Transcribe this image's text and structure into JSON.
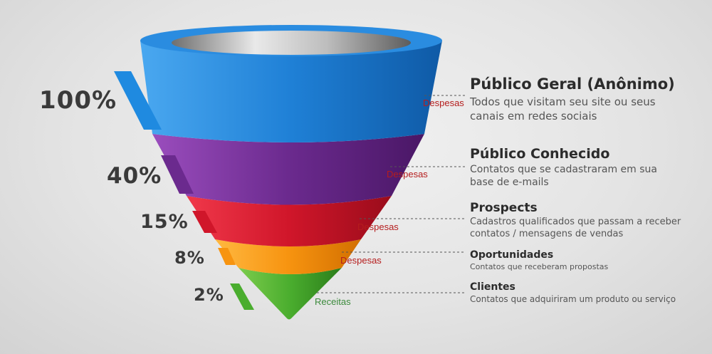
{
  "colors": {
    "blue": "#1f80d6",
    "purple": "#6b2a8e",
    "red": "#d0162a",
    "orange": "#f79410",
    "green": "#4aad2e",
    "despesas": "#b51d1d",
    "receitas": "#3b8a3b"
  },
  "stages": [
    {
      "percent": "100%",
      "cost_label": "Despesas",
      "title": "Público Geral (Anônimo)",
      "description_line1": "Todos que visitam seu site ou seus",
      "description_line2": "canais em redes sociais"
    },
    {
      "percent": "40%",
      "cost_label": "Despesas",
      "title": "Público Conhecido",
      "description_line1": "Contatos que se cadastraram em sua",
      "description_line2": "base de e-mails"
    },
    {
      "percent": "15%",
      "cost_label": "Despesas",
      "title": "Prospects",
      "description_line1": "Cadastros qualificados que passam a receber",
      "description_line2": "contatos / mensagens de vendas"
    },
    {
      "percent": "8%",
      "cost_label": "Despesas",
      "title": "Oportunidades",
      "description_line1": "Contatos que receberam propostas",
      "description_line2": ""
    },
    {
      "percent": "2%",
      "cost_label": "Receitas",
      "title": "Clientes",
      "description_line1": "Contatos que adquiriram um produto ou serviço",
      "description_line2": ""
    }
  ]
}
